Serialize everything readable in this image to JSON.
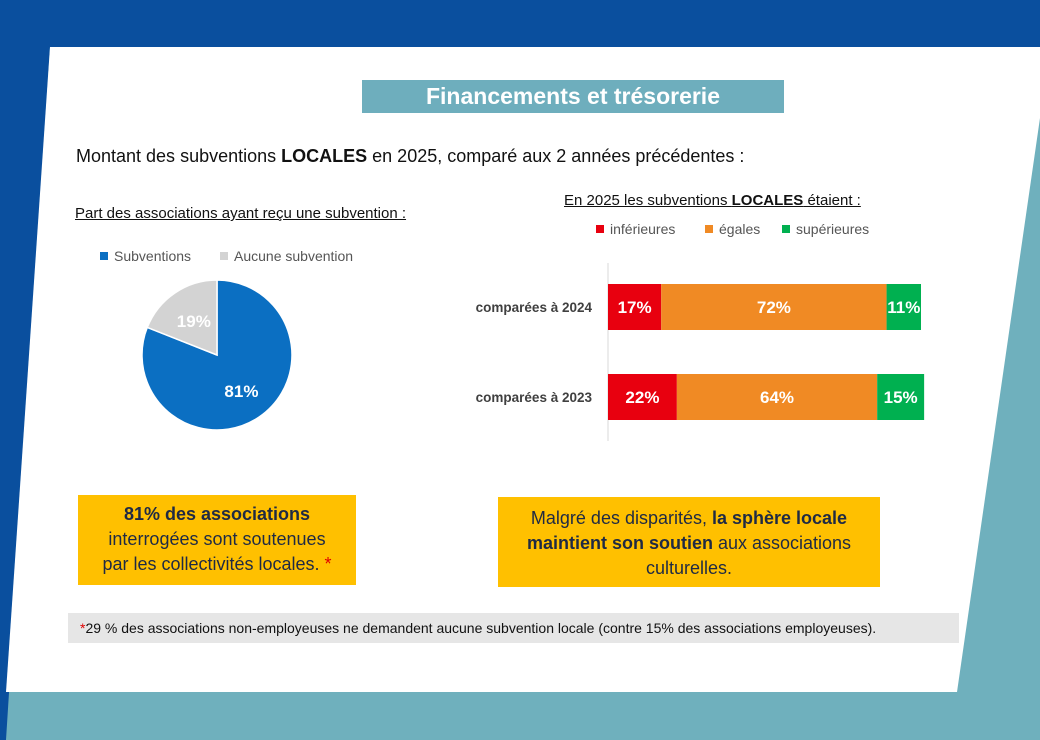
{
  "header": {
    "title": "Financements et trésorerie"
  },
  "subtitle": {
    "prefix": "Montant des subventions ",
    "emphasis": "LOCALES",
    "suffix": " en 2025, comparé aux 2 années précédentes :"
  },
  "colors": {
    "blue_frame": "#0a4f9e",
    "teal_frame": "#6fb0bd",
    "title_bg": "#6eaebd",
    "pie_subventions": "#0b6fc2",
    "pie_aucune": "#d3d3d3",
    "inferieures": "#e8000f",
    "egales": "#f08a24",
    "superieures": "#00b050",
    "box_bg": "#ffc000"
  },
  "chart_data": [
    {
      "type": "pie",
      "title": "Part des associations ayant reçu une subvention :",
      "legend_position": "top",
      "slices": [
        {
          "name": "Subventions",
          "value": 81,
          "label": "81%"
        },
        {
          "name": "Aucune subvention",
          "value": 19,
          "label": "19%"
        }
      ]
    },
    {
      "type": "bar",
      "orientation": "horizontal-stacked",
      "title_prefix": "En 2025 les subventions ",
      "title_emphasis": "LOCALES",
      "title_suffix": " étaient :",
      "legend_position": "top",
      "categories": [
        "comparées à 2024",
        "comparées à 2023"
      ],
      "series": [
        {
          "name": "inférieures",
          "values": [
            17,
            22
          ],
          "labels": [
            "17%",
            "22%"
          ]
        },
        {
          "name": "égales",
          "values": [
            72,
            64
          ],
          "labels": [
            "72%",
            "64%"
          ]
        },
        {
          "name": "supérieures",
          "values": [
            11,
            15
          ],
          "labels": [
            "11%",
            "15%"
          ]
        }
      ],
      "xlim": [
        0,
        100
      ]
    }
  ],
  "callouts": {
    "left": {
      "line1": "81% des associations",
      "line2": "interrogées sont soutenues",
      "line3": "par les collectivités locales.",
      "star": "*"
    },
    "right": {
      "part1": "Malgré des disparités, ",
      "part2": "la sphère locale",
      "part3": "maintient son soutien",
      "part4": " aux associations",
      "part5": "culturelles."
    }
  },
  "footnote": {
    "star": "*",
    "text": "29 % des associations non-employeuses ne  demandent aucune subvention locale (contre 15% des associations employeuses)."
  }
}
